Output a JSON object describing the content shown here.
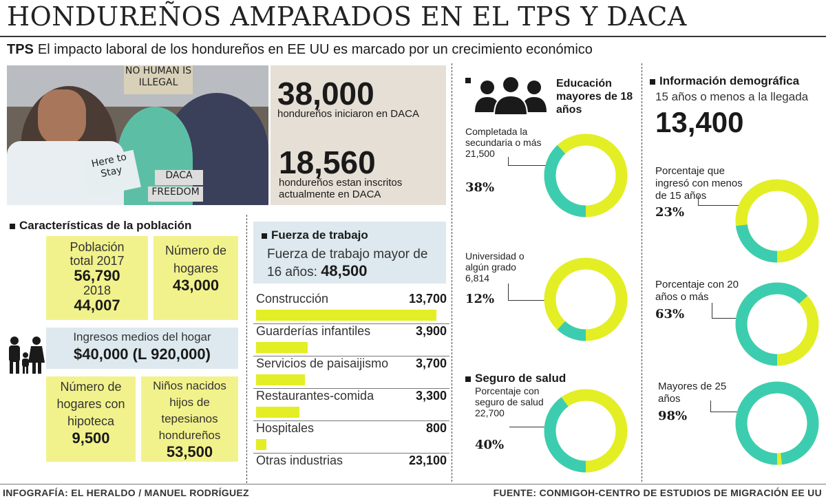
{
  "header": {
    "title": "HONDUREÑOS AMPARADOS EN EL TPS Y DACA",
    "subtitle_tag": "TPS",
    "subtitle": "El impacto laboral de los hondureños en EE UU es marcado por un crecimiento económico"
  },
  "photo": {
    "sign1": "NO HUMAN IS ILLEGAL",
    "sign2": "Here to Stay",
    "sign3": "DACA",
    "sign4": "FREEDOM"
  },
  "daca": {
    "stat1_value": "38,000",
    "stat1_label": "hondureños iniciaron en DACA",
    "stat2_value": "18,560",
    "stat2_label": "hondureños estan inscritos actualmente en DACA"
  },
  "poblacion": {
    "heading": "Características de la población",
    "total_label_1": "Población",
    "total_label_2": "total 2017",
    "total_2017": "56,790",
    "year_2018": "2018",
    "total_2018": "44,007",
    "hogares_label": "Número de hogares",
    "hogares_value": "43,000",
    "ingresos_label": "Ingresos medios del hogar",
    "ingresos_value": "$40,000 (L 920,000)",
    "hipoteca_label": "Número de hogares con hipoteca",
    "hipoteca_value": "9,500",
    "ninos_label": "Niños nacidos hijos de tepesianos hondureños",
    "ninos_value": "53,500"
  },
  "fuerza": {
    "heading": "Fuerza de trabajo",
    "mayor_label": "Fuerza de trabajo mayor de 16 años:",
    "mayor_value": "48,500"
  },
  "chart_data": {
    "type": "bar",
    "categories": [
      "Construcción",
      "Guarderías infantiles",
      "Servicios de paisaijismo",
      "Restaurantes-comida",
      "Hospitales",
      "Otras industrias"
    ],
    "values": [
      13700,
      3900,
      3700,
      3300,
      800,
      23100
    ],
    "value_labels": [
      "13,700",
      "3,900",
      "3,700",
      "3,300",
      "800",
      "23,100"
    ],
    "bar_color": "#e3ee24"
  },
  "educacion": {
    "heading": "Educación mayores de 18 años",
    "items": [
      {
        "label": "Completada la secundaria o más 21,500",
        "pct": "38%",
        "fraction": 0.38
      },
      {
        "label": "Universidad o algún grado 6,814",
        "pct": "12%",
        "fraction": 0.12
      }
    ]
  },
  "salud": {
    "heading": "Seguro de salud",
    "label": "Porcentaje con seguro de salud 22,700",
    "pct": "40%",
    "fraction": 0.4
  },
  "demografia": {
    "heading": "Información demográfica",
    "sub": "15 años o menos a la llegada",
    "value": "13,400",
    "items": [
      {
        "label": "Porcentaje que ingresó con menos de 15 años",
        "pct": "23%",
        "fraction": 0.23
      },
      {
        "label": "Porcentaje con 20 años o más",
        "pct": "63%",
        "fraction": 0.63
      },
      {
        "label": "Mayores de 25 años",
        "pct": "98%",
        "fraction": 0.98
      }
    ]
  },
  "colors": {
    "donut_fill": "#3ccdb0",
    "donut_rest": "#e3ee24",
    "yellow_box": "#f2f28c",
    "blue_box": "#dde9ef",
    "stats_bg": "#e6dfd5"
  },
  "icons": {
    "people": "people-group-icon",
    "family": "family-icon"
  },
  "footer": {
    "left": "INFOGRAFÍA: EL HERALDO / MANUEL RODRÍGUEZ",
    "right": "FUENTE: CONMIGOH-CENTRO DE ESTUDIOS DE MIGRACIÓN EE UU"
  }
}
